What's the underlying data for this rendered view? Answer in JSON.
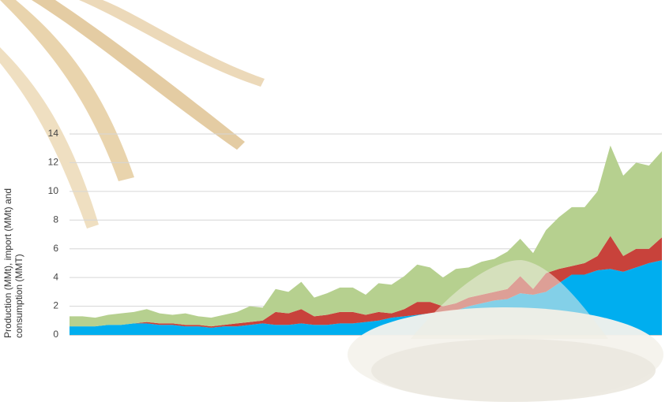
{
  "chart_data": {
    "type": "stacked-area",
    "y_label": "Production (MMt), import (MMt) and consumption (MMT)",
    "categories": [
      null,
      null,
      null,
      null,
      null,
      null,
      null,
      null,
      null,
      null,
      null,
      null,
      null,
      null,
      null,
      null,
      null,
      null,
      null,
      null,
      null,
      null,
      null,
      null,
      null,
      null,
      null,
      null,
      null,
      null,
      null,
      null,
      null,
      null,
      null,
      null,
      null,
      null,
      null,
      null,
      null,
      null,
      null,
      null,
      null,
      null,
      null
    ],
    "series": [
      {
        "color": "#00aeef",
        "values": [
          0.6,
          0.6,
          0.6,
          0.7,
          0.7,
          0.8,
          0.8,
          0.7,
          0.7,
          0.6,
          0.6,
          0.5,
          0.6,
          0.6,
          0.7,
          0.8,
          0.7,
          0.7,
          0.8,
          0.7,
          0.7,
          0.8,
          0.8,
          0.9,
          1.0,
          1.2,
          1.3,
          1.4,
          1.5,
          1.6,
          1.7,
          2.0,
          2.2,
          2.4,
          2.5,
          2.9,
          2.8,
          3.0,
          3.6,
          4.2,
          4.2,
          4.5,
          4.6,
          4.4,
          4.7,
          5.0,
          5.2
        ]
      },
      {
        "color": "#c8423b",
        "values": [
          0,
          0,
          0,
          0,
          0,
          0,
          0.1,
          0.1,
          0.1,
          0.1,
          0.1,
          0.1,
          0.1,
          0.2,
          0.2,
          0.2,
          0.9,
          0.8,
          1.0,
          0.6,
          0.7,
          0.8,
          0.8,
          0.5,
          0.6,
          0.3,
          0.5,
          0.9,
          0.8,
          0.4,
          0.5,
          0.6,
          0.6,
          0.6,
          0.7,
          1.2,
          0.4,
          1.3,
          1.0,
          0.6,
          0.8,
          1.0,
          2.3,
          1.1,
          1.3,
          1.0,
          1.6
        ]
      },
      {
        "color": "#b6d08f",
        "values": [
          0.7,
          0.7,
          0.6,
          0.7,
          0.8,
          0.8,
          0.9,
          0.7,
          0.6,
          0.8,
          0.6,
          0.6,
          0.7,
          0.8,
          1.1,
          0.9,
          1.6,
          1.5,
          1.9,
          1.3,
          1.5,
          1.7,
          1.7,
          1.4,
          2.0,
          2.0,
          2.3,
          2.6,
          2.4,
          2.0,
          2.4,
          2.1,
          2.3,
          2.3,
          2.6,
          2.6,
          2.5,
          3.0,
          3.6,
          4.1,
          3.9,
          4.5,
          6.3,
          5.6,
          6.0,
          5.8,
          6.0
        ]
      }
    ],
    "ylim": [
      0,
      14
    ],
    "yticks": [
      0,
      2,
      4,
      6,
      8,
      10,
      12,
      14
    ],
    "grid": true
  }
}
